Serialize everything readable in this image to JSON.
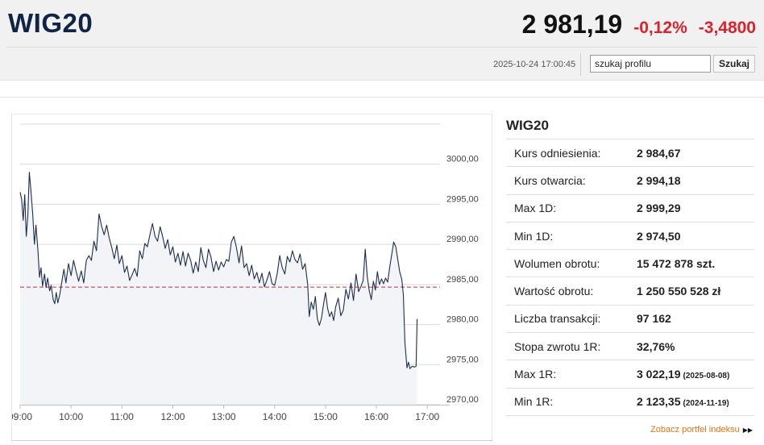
{
  "header": {
    "ticker": "WIG20",
    "price": "2 981,19",
    "change_pct": "-0,12%",
    "change_abs": "-3,4800",
    "timestamp": "2025-10-24 17:00:45",
    "search": {
      "value": "szukaj profilu",
      "button_label": "Szukaj"
    }
  },
  "colors": {
    "negative": "#d9232e",
    "brand": "#102545",
    "link": "#e0751a",
    "line": "#1e2d4d",
    "reference_line": "#d9232e"
  },
  "stats": {
    "title": "WIG20",
    "rows": [
      {
        "label": "Kurs odniesienia:",
        "value": "2 984,67",
        "note": ""
      },
      {
        "label": "Kurs otwarcia:",
        "value": "2 994,18",
        "note": ""
      },
      {
        "label": "Max 1D:",
        "value": "2 999,29",
        "note": ""
      },
      {
        "label": "Min 1D:",
        "value": "2 974,50",
        "note": ""
      },
      {
        "label": "Wolumen obrotu:",
        "value": "15 472 878 szt.",
        "note": ""
      },
      {
        "label": "Wartość obrotu:",
        "value": "1 250 550 528 zł",
        "note": ""
      },
      {
        "label": "Liczba transakcji:",
        "value": "97 162",
        "note": ""
      },
      {
        "label": "Stopa zwrotu 1R:",
        "value": "32,76%",
        "note": ""
      },
      {
        "label": "Max 1R:",
        "value": "3 022,19",
        "note": "(2025-08-08)"
      },
      {
        "label": "Min 1R:",
        "value": "2 123,35",
        "note": "(2024-11-19)"
      }
    ],
    "portfolio_link": "Zobacz portfel indeksu",
    "link_icon": "double-arrow-right-icon"
  },
  "chart_data": {
    "type": "line",
    "x_ticks": [
      "09:00",
      "10:00",
      "11:00",
      "12:00",
      "13:00",
      "14:00",
      "15:00",
      "16:00",
      "17:00"
    ],
    "y_ticks": [
      "3000,00",
      "2995,00",
      "2990,00",
      "2985,00",
      "2980,00",
      "2975,00",
      "2970,00"
    ],
    "ylim": [
      2970,
      3005
    ],
    "xlim_hours": [
      9.0,
      17.25
    ],
    "reference_value": 2984.67,
    "grid": true,
    "series": [
      {
        "points": [
          [
            9.0,
            2996.5
          ],
          [
            9.03,
            2995.6
          ],
          [
            9.06,
            2993.0
          ],
          [
            9.09,
            2996.2
          ],
          [
            9.12,
            2991.0
          ],
          [
            9.15,
            2993.5
          ],
          [
            9.18,
            2999.0
          ],
          [
            9.21,
            2996.8
          ],
          [
            9.25,
            2993.5
          ],
          [
            9.28,
            2990.0
          ],
          [
            9.31,
            2992.4
          ],
          [
            9.35,
            2989.2
          ],
          [
            9.38,
            2985.9
          ],
          [
            9.41,
            2987.1
          ],
          [
            9.44,
            2984.8
          ],
          [
            9.48,
            2986.3
          ],
          [
            9.51,
            2984.6
          ],
          [
            9.54,
            2985.8
          ],
          [
            9.58,
            2984.2
          ],
          [
            9.61,
            2984.9
          ],
          [
            9.65,
            2983.1
          ],
          [
            9.68,
            2982.6
          ],
          [
            9.71,
            2984.0
          ],
          [
            9.74,
            2982.7
          ],
          [
            9.78,
            2983.8
          ],
          [
            9.82,
            2985.4
          ],
          [
            9.86,
            2986.9
          ],
          [
            9.9,
            2985.2
          ],
          [
            9.95,
            2987.6
          ],
          [
            10.0,
            2986.1
          ],
          [
            10.05,
            2988.0
          ],
          [
            10.1,
            2986.6
          ],
          [
            10.15,
            2985.4
          ],
          [
            10.2,
            2986.7
          ],
          [
            10.25,
            2985.2
          ],
          [
            10.3,
            2988.0
          ],
          [
            10.35,
            2988.6
          ],
          [
            10.4,
            2988.0
          ],
          [
            10.45,
            2990.4
          ],
          [
            10.5,
            2989.2
          ],
          [
            10.55,
            2993.8
          ],
          [
            10.6,
            2992.3
          ],
          [
            10.65,
            2991.2
          ],
          [
            10.7,
            2992.4
          ],
          [
            10.75,
            2990.8
          ],
          [
            10.8,
            2989.6
          ],
          [
            10.85,
            2988.2
          ],
          [
            10.9,
            2989.9
          ],
          [
            10.95,
            2987.6
          ],
          [
            11.0,
            2988.6
          ],
          [
            11.05,
            2986.5
          ],
          [
            11.1,
            2987.3
          ],
          [
            11.15,
            2985.5
          ],
          [
            11.2,
            2986.2
          ],
          [
            11.25,
            2987.0
          ],
          [
            11.3,
            2986.0
          ],
          [
            11.35,
            2989.2
          ],
          [
            11.4,
            2988.2
          ],
          [
            11.45,
            2990.1
          ],
          [
            11.5,
            2989.7
          ],
          [
            11.55,
            2991.2
          ],
          [
            11.6,
            2992.6
          ],
          [
            11.65,
            2991.0
          ],
          [
            11.7,
            2990.4
          ],
          [
            11.75,
            2992.2
          ],
          [
            11.8,
            2991.0
          ],
          [
            11.85,
            2989.5
          ],
          [
            11.9,
            2990.6
          ],
          [
            11.95,
            2988.7
          ],
          [
            12.0,
            2989.7
          ],
          [
            12.05,
            2987.8
          ],
          [
            12.1,
            2988.9
          ],
          [
            12.15,
            2987.4
          ],
          [
            12.2,
            2989.1
          ],
          [
            12.25,
            2987.3
          ],
          [
            12.3,
            2988.9
          ],
          [
            12.35,
            2988.0
          ],
          [
            12.4,
            2986.4
          ],
          [
            12.45,
            2987.8
          ],
          [
            12.5,
            2986.6
          ],
          [
            12.55,
            2989.6
          ],
          [
            12.6,
            2988.0
          ],
          [
            12.65,
            2987.1
          ],
          [
            12.7,
            2989.4
          ],
          [
            12.75,
            2988.4
          ],
          [
            12.8,
            2986.6
          ],
          [
            12.85,
            2987.9
          ],
          [
            12.9,
            2986.8
          ],
          [
            12.95,
            2987.8
          ],
          [
            13.0,
            2987.2
          ],
          [
            13.05,
            2988.1
          ],
          [
            13.1,
            2987.9
          ],
          [
            13.15,
            2990.3
          ],
          [
            13.2,
            2991.0
          ],
          [
            13.25,
            2989.6
          ],
          [
            13.3,
            2987.7
          ],
          [
            13.35,
            2989.8
          ],
          [
            13.4,
            2987.1
          ],
          [
            13.45,
            2987.6
          ],
          [
            13.5,
            2986.1
          ],
          [
            13.55,
            2987.4
          ],
          [
            13.6,
            2985.7
          ],
          [
            13.65,
            2986.5
          ],
          [
            13.7,
            2985.2
          ],
          [
            13.75,
            2986.4
          ],
          [
            13.8,
            2984.7
          ],
          [
            13.85,
            2985.6
          ],
          [
            13.9,
            2986.6
          ],
          [
            13.95,
            2985.1
          ],
          [
            14.0,
            2984.9
          ],
          [
            14.05,
            2986.3
          ],
          [
            14.1,
            2988.6
          ],
          [
            14.15,
            2987.1
          ],
          [
            14.2,
            2986.3
          ],
          [
            14.25,
            2988.5
          ],
          [
            14.3,
            2987.8
          ],
          [
            14.35,
            2989.2
          ],
          [
            14.4,
            2988.1
          ],
          [
            14.45,
            2987.7
          ],
          [
            14.5,
            2988.8
          ],
          [
            14.55,
            2986.9
          ],
          [
            14.6,
            2987.6
          ],
          [
            14.65,
            2985.0
          ],
          [
            14.68,
            2981.0
          ],
          [
            14.72,
            2982.8
          ],
          [
            14.76,
            2981.9
          ],
          [
            14.8,
            2983.5
          ],
          [
            14.84,
            2980.7
          ],
          [
            14.88,
            2979.9
          ],
          [
            14.92,
            2980.8
          ],
          [
            14.96,
            2982.5
          ],
          [
            15.0,
            2984.0
          ],
          [
            15.04,
            2982.1
          ],
          [
            15.08,
            2981.0
          ],
          [
            15.12,
            2981.6
          ],
          [
            15.16,
            2980.5
          ],
          [
            15.2,
            2982.2
          ],
          [
            15.25,
            2983.3
          ],
          [
            15.3,
            2981.1
          ],
          [
            15.35,
            2981.8
          ],
          [
            15.4,
            2984.4
          ],
          [
            15.45,
            2983.2
          ],
          [
            15.5,
            2985.2
          ],
          [
            15.55,
            2983.0
          ],
          [
            15.6,
            2986.3
          ],
          [
            15.65,
            2984.1
          ],
          [
            15.7,
            2984.8
          ],
          [
            15.74,
            2985.5
          ],
          [
            15.78,
            2989.4
          ],
          [
            15.82,
            2986.0
          ],
          [
            15.86,
            2984.2
          ],
          [
            15.9,
            2983.1
          ],
          [
            15.94,
            2985.4
          ],
          [
            15.98,
            2984.3
          ],
          [
            16.02,
            2986.6
          ],
          [
            16.06,
            2985.0
          ],
          [
            16.1,
            2985.7
          ],
          [
            16.14,
            2985.1
          ],
          [
            16.18,
            2985.8
          ],
          [
            16.22,
            2985.3
          ],
          [
            16.26,
            2987.1
          ],
          [
            16.3,
            2988.7
          ],
          [
            16.34,
            2990.3
          ],
          [
            16.38,
            2989.7
          ],
          [
            16.42,
            2988.1
          ],
          [
            16.46,
            2986.5
          ],
          [
            16.5,
            2985.6
          ],
          [
            16.53,
            2983.7
          ],
          [
            16.56,
            2977.8
          ],
          [
            16.6,
            2974.6
          ],
          [
            16.63,
            2975.3
          ],
          [
            16.66,
            2974.5
          ],
          [
            16.7,
            2974.8
          ],
          [
            16.75,
            2974.7
          ],
          [
            16.78,
            2974.8
          ],
          [
            16.8,
            2980.7
          ]
        ]
      }
    ]
  }
}
